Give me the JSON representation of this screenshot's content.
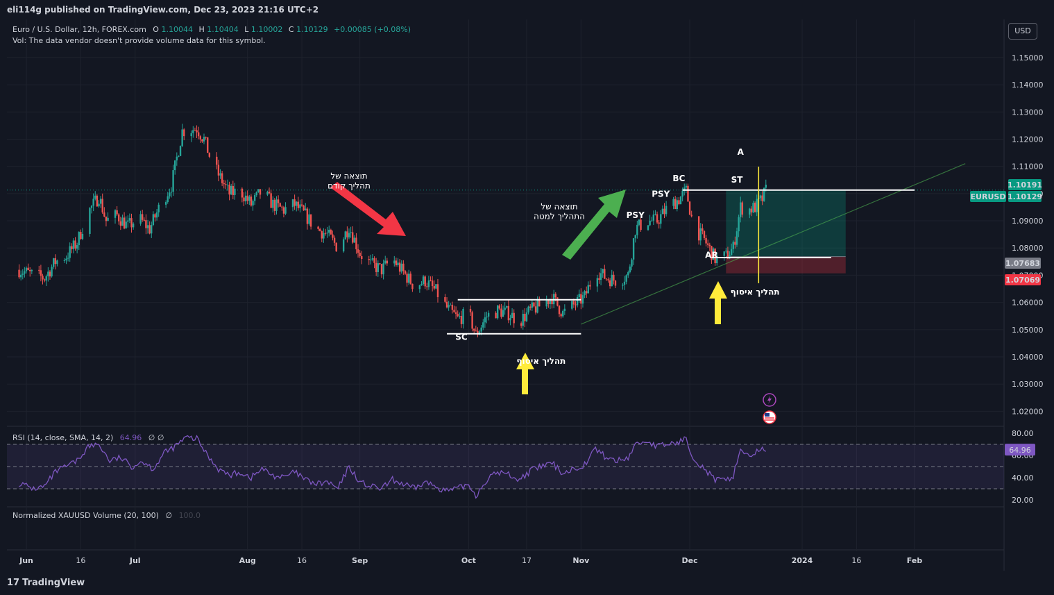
{
  "header": {
    "published": "eli114g published on TradingView.com, Dec 23, 2023 21:16 UTC+2",
    "currency_button": "USD"
  },
  "legend": {
    "symbol": "Euro / U.S. Dollar, 12h, FOREX.com",
    "o_label": "O",
    "o_value": "1.10044",
    "h_label": "H",
    "h_value": "1.10404",
    "l_label": "L",
    "l_value": "1.10002",
    "c_label": "C",
    "c_value": "1.10129",
    "change": "+0.00085 (+0.08%)",
    "vol_note": "Vol: The data vendor doesn't provide volume data for this symbol."
  },
  "rsi_legend": {
    "label": "RSI (14, close, SMA, 14, 2)",
    "value": "64.96",
    "extra": "∅ ∅"
  },
  "volume_legend": {
    "label": "Normalized XAUUSD Volume (20, 100)",
    "extra": "∅",
    "value": "100.0"
  },
  "footer": {
    "brand": "TradingView"
  },
  "colors": {
    "background": "#131722",
    "up": "#26a69a",
    "down": "#ef5350",
    "rsi_line": "#7e57c2",
    "accent_green": "#089981",
    "accent_red": "#f23645",
    "yellow": "#ffeb3b"
  },
  "chart_data": {
    "type": "candlestick",
    "symbol": "EURUSD",
    "timeframe": "12h",
    "y_ticks": [
      "1.15000",
      "1.14000",
      "1.13000",
      "1.12000",
      "1.11000",
      "1.10000",
      "1.09000",
      "1.08000",
      "1.07000",
      "1.06000",
      "1.05000",
      "1.04000",
      "1.03000",
      "1.02000"
    ],
    "x_ticks": [
      "Jun",
      "16",
      "Jul",
      "Aug",
      "16",
      "Sep",
      "Oct",
      "17",
      "Nov",
      "Dec",
      "2024",
      "16",
      "Feb"
    ],
    "x_tick_dates": [
      "2023-06-01",
      "2023-06-16",
      "2023-07-01",
      "2023-08-01",
      "2023-08-16",
      "2023-09-01",
      "2023-10-01",
      "2023-10-17",
      "2023-11-01",
      "2023-12-01",
      "2024-01-01",
      "2024-01-16",
      "2024-02-01"
    ],
    "ylim": [
      1.015,
      1.164
    ],
    "price_labels": [
      {
        "text": "1.10191",
        "color": "#089981"
      },
      {
        "text": "EURUSD",
        "color": "#089981"
      },
      {
        "text": "1.10129",
        "color": "#089981"
      },
      {
        "text": "1.07683",
        "color": "#787b86"
      },
      {
        "text": "1.07069",
        "color": "#f23645"
      }
    ],
    "close_path": [
      [
        "2023-05-30",
        1.072
      ],
      [
        "2023-06-03",
        1.07
      ],
      [
        "2023-06-06",
        1.069
      ],
      [
        "2023-06-09",
        1.075
      ],
      [
        "2023-06-12",
        1.077
      ],
      [
        "2023-06-15",
        1.082
      ],
      [
        "2023-06-18",
        1.093
      ],
      [
        "2023-06-21",
        1.099
      ],
      [
        "2023-06-23",
        1.09
      ],
      [
        "2023-06-26",
        1.092
      ],
      [
        "2023-06-29",
        1.088
      ],
      [
        "2023-07-02",
        1.091
      ],
      [
        "2023-07-05",
        1.087
      ],
      [
        "2023-07-08",
        1.096
      ],
      [
        "2023-07-11",
        1.103
      ],
      [
        "2023-07-14",
        1.123
      ],
      [
        "2023-07-18",
        1.124
      ],
      [
        "2023-07-20",
        1.12
      ],
      [
        "2023-07-22",
        1.112
      ],
      [
        "2023-07-24",
        1.107
      ],
      [
        "2023-07-27",
        1.1
      ],
      [
        "2023-07-30",
        1.101
      ],
      [
        "2023-08-02",
        1.096
      ],
      [
        "2023-08-05",
        1.101
      ],
      [
        "2023-08-08",
        1.096
      ],
      [
        "2023-08-11",
        1.094
      ],
      [
        "2023-08-14",
        1.096
      ],
      [
        "2023-08-17",
        1.092
      ],
      [
        "2023-08-20",
        1.087
      ],
      [
        "2023-08-23",
        1.085
      ],
      [
        "2023-08-26",
        1.08
      ],
      [
        "2023-08-29",
        1.088
      ],
      [
        "2023-09-01",
        1.078
      ],
      [
        "2023-09-04",
        1.074
      ],
      [
        "2023-09-07",
        1.072
      ],
      [
        "2023-09-10",
        1.076
      ],
      [
        "2023-09-13",
        1.071
      ],
      [
        "2023-09-16",
        1.066
      ],
      [
        "2023-09-19",
        1.068
      ],
      [
        "2023-09-22",
        1.064
      ],
      [
        "2023-09-25",
        1.058
      ],
      [
        "2023-09-28",
        1.054
      ],
      [
        "2023-10-01",
        1.056
      ],
      [
        "2023-10-03",
        1.048
      ],
      [
        "2023-10-06",
        1.055
      ],
      [
        "2023-10-09",
        1.057
      ],
      [
        "2023-10-12",
        1.056
      ],
      [
        "2023-10-15",
        1.053
      ],
      [
        "2023-10-18",
        1.057
      ],
      [
        "2023-10-21",
        1.059
      ],
      [
        "2023-10-24",
        1.062
      ],
      [
        "2023-10-27",
        1.056
      ],
      [
        "2023-10-30",
        1.059
      ],
      [
        "2023-11-02",
        1.062
      ],
      [
        "2023-11-05",
        1.072
      ],
      [
        "2023-11-08",
        1.069
      ],
      [
        "2023-11-11",
        1.068
      ],
      [
        "2023-11-14",
        1.07
      ],
      [
        "2023-11-16",
        1.087
      ],
      [
        "2023-11-19",
        1.09
      ],
      [
        "2023-11-22",
        1.09
      ],
      [
        "2023-11-25",
        1.095
      ],
      [
        "2023-11-28",
        1.098
      ],
      [
        "2023-11-30",
        1.101
      ],
      [
        "2023-12-02",
        1.088
      ],
      [
        "2023-12-05",
        1.083
      ],
      [
        "2023-12-08",
        1.076
      ],
      [
        "2023-12-11",
        1.077
      ],
      [
        "2023-12-13",
        1.08
      ],
      [
        "2023-12-15",
        1.095
      ],
      [
        "2023-12-17",
        1.094
      ],
      [
        "2023-12-19",
        1.095
      ],
      [
        "2023-12-21",
        1.098
      ],
      [
        "2023-12-22",
        1.1013
      ]
    ],
    "levels": [
      {
        "name": "range-top",
        "price": 1.061,
        "from": "2023-09-28",
        "to": "2023-11-01",
        "color": "#ffffff"
      },
      {
        "name": "range-bottom",
        "price": 1.0485,
        "from": "2023-09-25",
        "to": "2023-11-01",
        "color": "#ffffff"
      },
      {
        "name": "bc-level",
        "price": 1.1013,
        "from": "2023-11-29",
        "to": "2024-02-01",
        "color": "#ffffff"
      },
      {
        "name": "ar-level",
        "price": 1.0765,
        "from": "2023-12-07",
        "to": "2024-01-09",
        "color": "#ffffff"
      }
    ],
    "trendline": {
      "from": [
        "2023-11-01",
        1.052
      ],
      "to": [
        "2024-02-15",
        1.111
      ],
      "color": "#4caf50"
    },
    "position": {
      "from": "2023-12-11",
      "to": "2024-01-13",
      "entry": 1.07683,
      "target": 1.1013,
      "stop": 1.07069
    },
    "vertical_line": {
      "date": "2023-12-20",
      "color": "#ffeb3b"
    },
    "labels": [
      {
        "text": "SC",
        "date": "2023-09-29",
        "price": 1.0462
      },
      {
        "text": "PSY",
        "date": "2023-11-16",
        "price": 1.091
      },
      {
        "text": "PSY",
        "date": "2023-11-23",
        "price": 1.0988
      },
      {
        "text": "BC",
        "date": "2023-11-28",
        "price": 1.1045
      },
      {
        "text": "ST",
        "date": "2023-12-14",
        "price": 1.104
      },
      {
        "text": "AR",
        "date": "2023-12-07",
        "price": 1.0763
      },
      {
        "text": "A",
        "date": "2023-12-15",
        "price": 1.1142
      }
    ],
    "hebrew_notes": [
      {
        "lines": [
          "תוצאה של",
          "תהליך קודם"
        ],
        "date": "2023-08-29",
        "price": 1.1055
      },
      {
        "lines": [
          "תוצאה של",
          "התהליך למטה"
        ],
        "date": "2023-10-26",
        "price": 1.0942
      },
      {
        "lines": [
          "תהליך איסוף"
        ],
        "date": "2023-10-21",
        "price": 1.0375
      },
      {
        "lines": [
          "תהליך איסוף"
        ],
        "date": "2023-12-19",
        "price": 1.0629
      }
    ],
    "rsi": {
      "ylim": [
        15,
        85
      ],
      "y_ticks": [
        "80.00",
        "60.00",
        "40.00",
        "20.00"
      ],
      "bands": [
        70,
        50,
        30
      ],
      "last": 64.96,
      "path": [
        [
          "2023-05-30",
          35
        ],
        [
          "2023-06-03",
          30
        ],
        [
          "2023-06-06",
          32
        ],
        [
          "2023-06-09",
          45
        ],
        [
          "2023-06-12",
          50
        ],
        [
          "2023-06-15",
          55
        ],
        [
          "2023-06-18",
          68
        ],
        [
          "2023-06-21",
          70
        ],
        [
          "2023-06-24",
          55
        ],
        [
          "2023-06-27",
          58
        ],
        [
          "2023-06-30",
          50
        ],
        [
          "2023-07-03",
          55
        ],
        [
          "2023-07-06",
          48
        ],
        [
          "2023-07-09",
          62
        ],
        [
          "2023-07-12",
          68
        ],
        [
          "2023-07-15",
          76
        ],
        [
          "2023-07-18",
          75
        ],
        [
          "2023-07-21",
          60
        ],
        [
          "2023-07-24",
          48
        ],
        [
          "2023-07-27",
          42
        ],
        [
          "2023-07-30",
          45
        ],
        [
          "2023-08-02",
          40
        ],
        [
          "2023-08-05",
          48
        ],
        [
          "2023-08-08",
          42
        ],
        [
          "2023-08-11",
          40
        ],
        [
          "2023-08-14",
          45
        ],
        [
          "2023-08-17",
          38
        ],
        [
          "2023-08-20",
          34
        ],
        [
          "2023-08-23",
          36
        ],
        [
          "2023-08-26",
          30
        ],
        [
          "2023-08-29",
          50
        ],
        [
          "2023-09-01",
          36
        ],
        [
          "2023-09-04",
          32
        ],
        [
          "2023-09-07",
          30
        ],
        [
          "2023-09-10",
          38
        ],
        [
          "2023-09-13",
          34
        ],
        [
          "2023-09-16",
          30
        ],
        [
          "2023-09-19",
          36
        ],
        [
          "2023-09-22",
          32
        ],
        [
          "2023-09-25",
          28
        ],
        [
          "2023-09-28",
          30
        ],
        [
          "2023-10-01",
          34
        ],
        [
          "2023-10-03",
          24
        ],
        [
          "2023-10-06",
          38
        ],
        [
          "2023-10-09",
          45
        ],
        [
          "2023-10-12",
          43
        ],
        [
          "2023-10-15",
          38
        ],
        [
          "2023-10-18",
          46
        ],
        [
          "2023-10-21",
          50
        ],
        [
          "2023-10-24",
          53
        ],
        [
          "2023-10-27",
          44
        ],
        [
          "2023-10-30",
          48
        ],
        [
          "2023-11-02",
          52
        ],
        [
          "2023-11-05",
          66
        ],
        [
          "2023-11-08",
          58
        ],
        [
          "2023-11-11",
          55
        ],
        [
          "2023-11-14",
          58
        ],
        [
          "2023-11-16",
          70
        ],
        [
          "2023-11-19",
          73
        ],
        [
          "2023-11-22",
          68
        ],
        [
          "2023-11-25",
          70
        ],
        [
          "2023-11-28",
          72
        ],
        [
          "2023-11-30",
          75
        ],
        [
          "2023-12-02",
          58
        ],
        [
          "2023-12-05",
          48
        ],
        [
          "2023-12-08",
          38
        ],
        [
          "2023-12-11",
          37
        ],
        [
          "2023-12-13",
          42
        ],
        [
          "2023-12-15",
          66
        ],
        [
          "2023-12-17",
          60
        ],
        [
          "2023-12-19",
          62
        ],
        [
          "2023-12-21",
          64.96
        ]
      ]
    }
  }
}
